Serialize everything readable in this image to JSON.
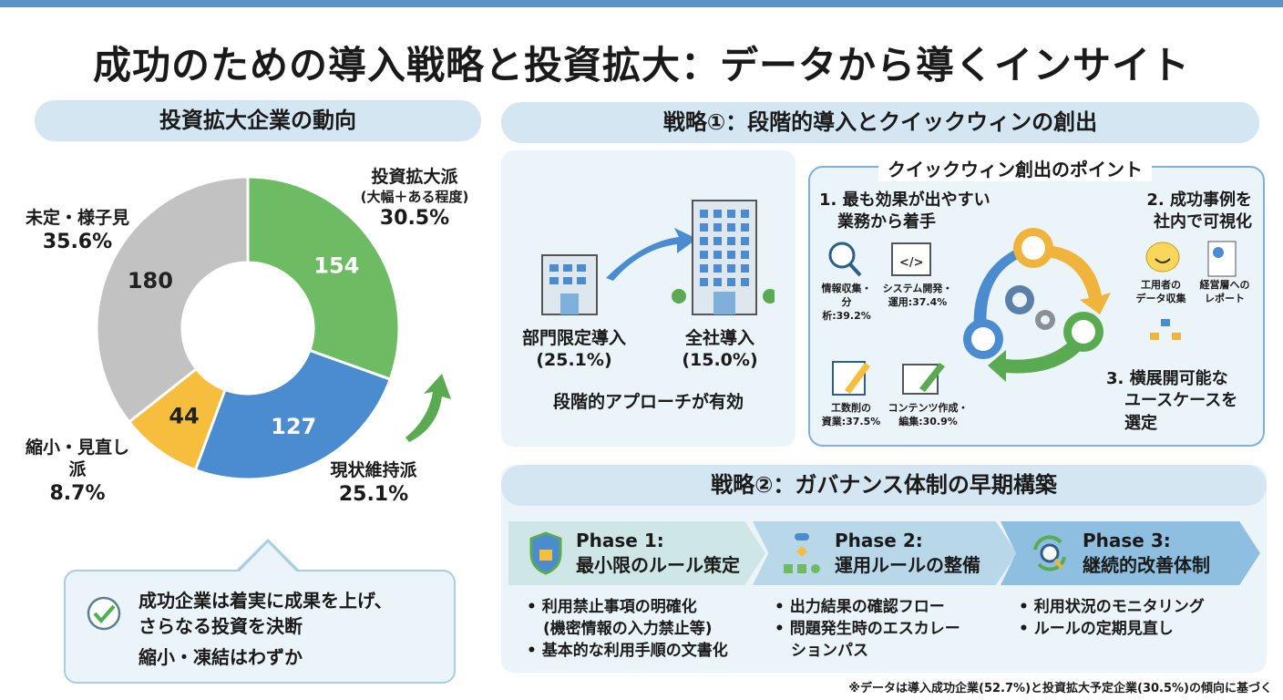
{
  "title": "成功のための導入戦略と投資拡大：データから導くインサイト",
  "left": {
    "header": "投資拡大企業の動向",
    "labels": {
      "expand_title": "投資拡大派",
      "expand_sub": "(大幅＋ある程度)",
      "expand_pct": "30.5%",
      "maintain_title": "現状維持派",
      "maintain_pct": "25.1%",
      "shrink_title1": "縮小・見直し",
      "shrink_title2": "派",
      "shrink_pct": "8.7%",
      "undecided_title": "未定・様子見",
      "undecided_pct": "35.6%"
    },
    "callout": {
      "line1": "成功企業は着実に成果を上げ、",
      "line2": "さらなる投資を決断",
      "line3": "縮小・凍結はわずか"
    }
  },
  "chart_data": {
    "type": "pie",
    "donut": true,
    "categories": [
      "投資拡大派",
      "現状維持派",
      "縮小・見直し派",
      "未定・様子見"
    ],
    "values": [
      154,
      127,
      44,
      180
    ],
    "percents": [
      30.5,
      25.1,
      8.7,
      35.6
    ],
    "colors": [
      "#6dbb63",
      "#4a8ccf",
      "#f7bd3c",
      "#c2c2c2"
    ],
    "value_labels": [
      "154",
      "127",
      "44",
      "180"
    ]
  },
  "strategy1": {
    "header": "戦略①：段階的導入とクイックウィンの創出",
    "dept": "部門限定導入",
    "dept_pct": "(25.1%)",
    "company": "全社導入",
    "company_pct": "(15.0%)",
    "approach": "段階的アプローチが有効",
    "points_title": "クイックウィン創出のポイント",
    "p1a": "1. 最も効果が出やすい",
    "p1b": "業務から着手",
    "p2a": "2. 成功事例を",
    "p2b": "社内で可視化",
    "p3a": "3. 横展開可能な",
    "p3b": "ユースケースを",
    "p3c": "選定",
    "stats": [
      {
        "a": "情報収集・",
        "b": "分析:39.2%"
      },
      {
        "a": "システム開発・",
        "b": "運用:37.4%"
      },
      {
        "a": "工数削の",
        "b": "資業:37.5%"
      },
      {
        "a": "コンテンツ作成・",
        "b": "編集:30.9%"
      }
    ],
    "viz": [
      {
        "a": "工用者の",
        "b": "データ収集"
      },
      {
        "a": "経営層への",
        "b": "レポート"
      }
    ]
  },
  "strategy2": {
    "header": "戦略②：ガバナンス体制の早期構築",
    "phases": [
      {
        "t": "Phase 1:",
        "s": "最小限のルール策定",
        "items": [
          "利用禁止事項の明確化",
          "(機密情報の入力禁止等)",
          "基本的な利用手順の文書化"
        ]
      },
      {
        "t": "Phase 2:",
        "s": "運用ルールの整備",
        "items": [
          "出力結果の確認フロー",
          "問題発生時のエスカレー",
          "ションパス"
        ]
      },
      {
        "t": "Phase 3:",
        "s": "継続的改善体制",
        "items": [
          "利用状況のモニタリング",
          "ルールの定期見直し"
        ]
      }
    ]
  },
  "footnote": "※データは導入成功企業(52.7%)と投資拡大予定企業(30.5%)の傾向に基づく"
}
